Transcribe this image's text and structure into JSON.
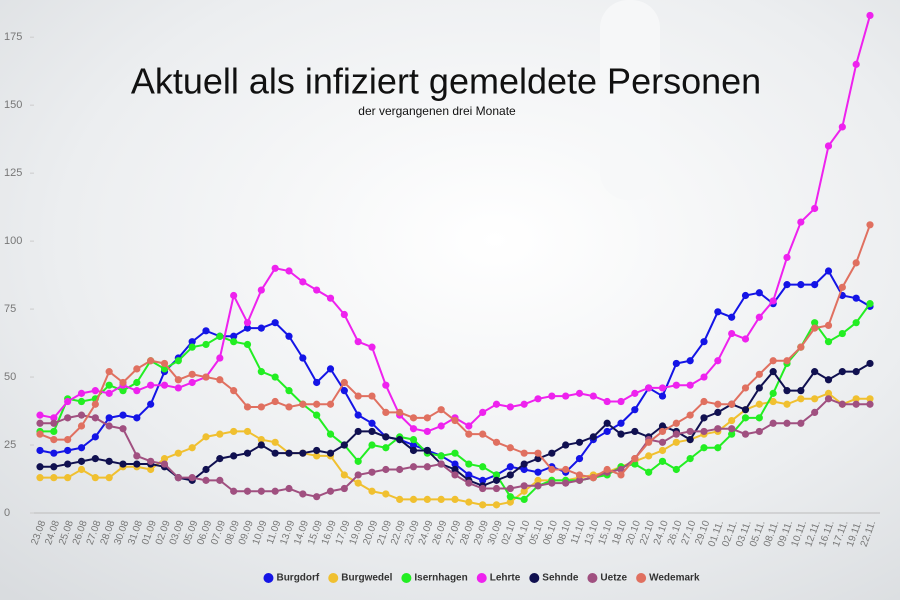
{
  "chart_data": {
    "type": "line",
    "title": "Aktuell als infiziert gemeldete Personen",
    "subtitle": "der vergangenen drei Monate",
    "categories": [
      "23.08",
      "24.08",
      "25.08",
      "26.08",
      "27.08",
      "28.08",
      "30.08",
      "31.08",
      "01.09",
      "02.09",
      "03.09",
      "05.09",
      "06.09",
      "07.09",
      "08.09",
      "09.09",
      "10.09",
      "11.09",
      "13.09",
      "14.09",
      "15.09",
      "16.09",
      "17.09",
      "19.09",
      "20.09",
      "21.09",
      "22.09",
      "23.09",
      "24.09",
      "26.09",
      "27.09",
      "28.09",
      "29.09",
      "30.09",
      "02.10",
      "04.10",
      "05.10",
      "06.10",
      "08.10",
      "11.10",
      "13.10",
      "15.10",
      "18.10",
      "20.10",
      "22.10",
      "24.10",
      "26.10",
      "27.10",
      "29.10",
      "01.11.",
      "02.11.",
      "03.11.",
      "05.11.",
      "08.11.",
      "09.11.",
      "10.11.",
      "12.11.",
      "16.11.",
      "17.11.",
      "19.11.",
      "22.11."
    ],
    "series": [
      {
        "name": "Burgdorf",
        "color": "#1414e6",
        "values": [
          23,
          22,
          23,
          24,
          28,
          35,
          36,
          35,
          40,
          52,
          57,
          63,
          67,
          65,
          65,
          68,
          68,
          70,
          65,
          57,
          48,
          53,
          45,
          36,
          33,
          28,
          27,
          25,
          23,
          21,
          18,
          14,
          12,
          14,
          17,
          16,
          15,
          17,
          15,
          20,
          27,
          30,
          33,
          38,
          46,
          43,
          55,
          56,
          63,
          74,
          72,
          80,
          81,
          77,
          84,
          84,
          84,
          89,
          80,
          79,
          76
        ]
      },
      {
        "name": "Burgwedel",
        "color": "#f0c030",
        "values": [
          13,
          13,
          13,
          16,
          13,
          13,
          17,
          17,
          16,
          20,
          22,
          24,
          28,
          29,
          30,
          30,
          27,
          26,
          22,
          22,
          21,
          21,
          14,
          11,
          8,
          7,
          5,
          5,
          5,
          5,
          5,
          4,
          3,
          3,
          4,
          8,
          12,
          12,
          12,
          13,
          14,
          15,
          17,
          19,
          21,
          23,
          26,
          27,
          29,
          30,
          34,
          38,
          40,
          41,
          40,
          42,
          42,
          44,
          40,
          42,
          42
        ]
      },
      {
        "name": "Isernhagen",
        "color": "#22ee22",
        "values": [
          30,
          30,
          42,
          41,
          42,
          47,
          45,
          48,
          56,
          53,
          56,
          61,
          62,
          65,
          63,
          62,
          52,
          50,
          45,
          40,
          36,
          29,
          25,
          19,
          25,
          24,
          28,
          27,
          22,
          21,
          22,
          18,
          17,
          14,
          6,
          5,
          10,
          12,
          12,
          12,
          13,
          14,
          17,
          18,
          15,
          19,
          16,
          20,
          24,
          24,
          29,
          35,
          35,
          44,
          55,
          61,
          70,
          63,
          66,
          70,
          77
        ]
      },
      {
        "name": "Lehrte",
        "color": "#ee22ee",
        "values": [
          36,
          35,
          41,
          44,
          45,
          44,
          47,
          45,
          47,
          47,
          46,
          48,
          50,
          57,
          80,
          70,
          82,
          90,
          89,
          85,
          82,
          79,
          73,
          63,
          61,
          47,
          36,
          31,
          30,
          32,
          35,
          32,
          37,
          40,
          39,
          40,
          42,
          43,
          43,
          44,
          43,
          41,
          41,
          44,
          46,
          46,
          47,
          47,
          50,
          56,
          66,
          64,
          72,
          78,
          94,
          107,
          112,
          135,
          142,
          165,
          183
        ]
      },
      {
        "name": "Sehnde",
        "color": "#101050",
        "values": [
          17,
          17,
          18,
          19,
          20,
          19,
          18,
          18,
          18,
          17,
          13,
          12,
          16,
          20,
          21,
          22,
          25,
          22,
          22,
          22,
          23,
          22,
          25,
          30,
          30,
          28,
          27,
          23,
          23,
          18,
          16,
          12,
          10,
          12,
          14,
          18,
          20,
          22,
          25,
          26,
          28,
          33,
          29,
          30,
          28,
          32,
          30,
          27,
          35,
          37,
          40,
          38,
          46,
          52,
          45,
          45,
          52,
          49,
          52,
          52,
          55
        ]
      },
      {
        "name": "Uetze",
        "color": "#a05080",
        "values": [
          33,
          33,
          35,
          36,
          35,
          32,
          31,
          21,
          19,
          18,
          13,
          13,
          12,
          12,
          8,
          8,
          8,
          8,
          9,
          7,
          6,
          8,
          9,
          14,
          15,
          16,
          16,
          17,
          17,
          18,
          14,
          11,
          9,
          9,
          9,
          10,
          10,
          11,
          11,
          12,
          13,
          15,
          16,
          20,
          27,
          26,
          29,
          30,
          30,
          31,
          31,
          29,
          30,
          33,
          33,
          33,
          37,
          42,
          40,
          40,
          40
        ]
      },
      {
        "name": "Wedemark",
        "color": "#e07060",
        "values": [
          29,
          27,
          27,
          32,
          40,
          52,
          48,
          53,
          56,
          55,
          49,
          51,
          50,
          49,
          45,
          39,
          39,
          41,
          39,
          40,
          40,
          40,
          48,
          43,
          43,
          37,
          37,
          35,
          35,
          38,
          34,
          29,
          29,
          26,
          24,
          22,
          22,
          16,
          16,
          14,
          13,
          16,
          14,
          20,
          26,
          30,
          33,
          36,
          41,
          40,
          40,
          46,
          51,
          56,
          56,
          61,
          68,
          69,
          83,
          92,
          106
        ]
      }
    ],
    "ylim": [
      0,
      185
    ],
    "yticks": [
      0,
      25,
      50,
      75,
      100,
      125,
      150,
      175
    ],
    "grid": false
  }
}
